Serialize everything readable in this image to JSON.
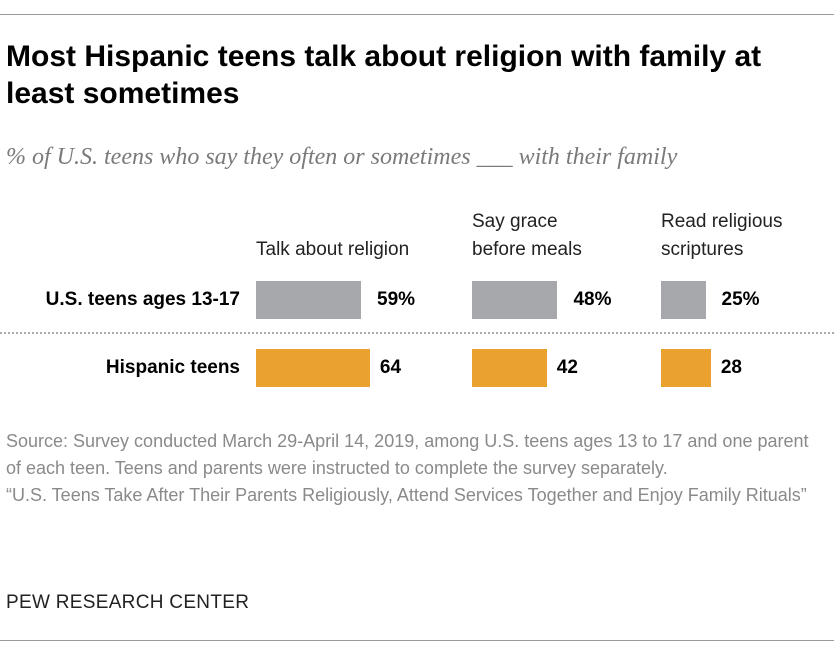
{
  "title": "Most Hispanic teens talk about religion with family at least sometimes",
  "subtitle": "% of U.S. teens who say they often or sometimes ___ with their family",
  "source": "Source: Survey conducted March 29-April 14, 2019, among U.S. teens ages 13 to 17 and one parent of each teen. Teens and parents were instructed to complete the survey separately.",
  "report": "“U.S. Teens Take After Their Parents Religiously, Attend Services Together and Enjoy Family Rituals”",
  "credit": "PEW RESEARCH CENTER",
  "chart_data": {
    "type": "bar",
    "orientation": "horizontal",
    "categories": [
      "Talk about religion",
      "Say grace before meals",
      "Read religious scriptures"
    ],
    "category_lines": [
      [
        "Talk about religion"
      ],
      [
        "Say grace",
        "before meals"
      ],
      [
        "Read religious",
        "scriptures"
      ]
    ],
    "series": [
      {
        "name": "U.S. teens ages 13-17",
        "values": [
          59,
          48,
          25
        ],
        "labels": [
          "59%",
          "48%",
          "25%"
        ],
        "color": "#a7a8ab"
      },
      {
        "name": "Hispanic teens",
        "values": [
          64,
          42,
          28
        ],
        "labels": [
          "64",
          "42",
          "28"
        ],
        "color": "#eba12f"
      }
    ],
    "unit": "%",
    "xlim": [
      0,
      100
    ],
    "grid": false,
    "legend": "none"
  }
}
